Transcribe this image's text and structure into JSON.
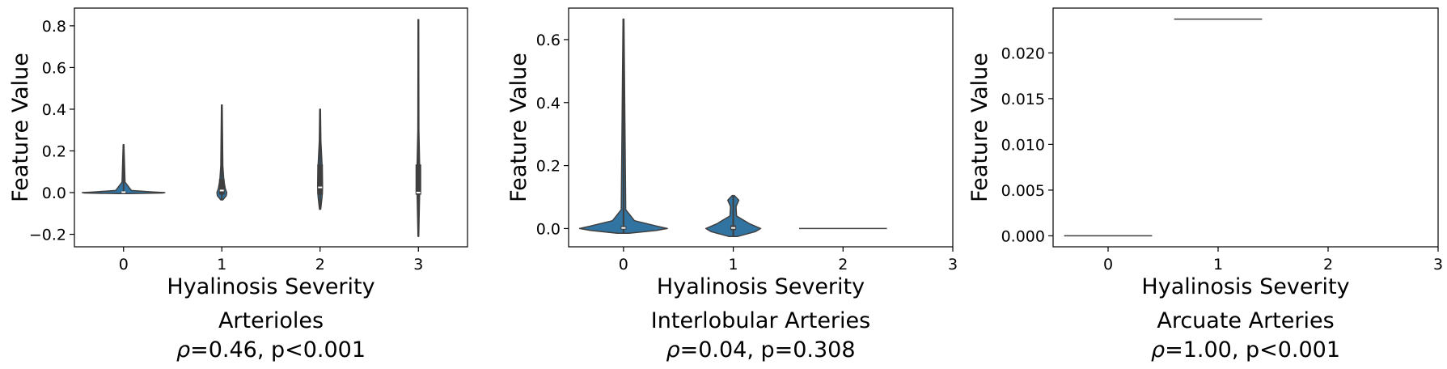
{
  "colors": {
    "violin": "#3274a1",
    "outline": "#3f3f3f",
    "median": "#ffffff"
  },
  "chart_data": [
    {
      "type": "violin",
      "title_line1": "Arterioles",
      "title_line2_prefix": "ρ",
      "title_line2": "=0.46, p<0.001",
      "xlabel": "Hyalinosis Severity",
      "ylabel": "Feature Value",
      "xlim": [
        -0.5,
        3.5
      ],
      "ylim": [
        -0.26,
        0.885
      ],
      "xticks": [
        0,
        1,
        2,
        3
      ],
      "yticks": [
        -0.2,
        0.0,
        0.2,
        0.4,
        0.6,
        0.8
      ],
      "ytick_labels": [
        "−0.2",
        "0.0",
        "0.2",
        "0.4",
        "0.6",
        "0.8"
      ],
      "groups": [
        {
          "x": 0,
          "min": -0.005,
          "max": 0.23,
          "q1": -0.003,
          "median": 0.002,
          "q3": 0.006,
          "profile": [
            [
              -0.005,
              0.05
            ],
            [
              -0.002,
              0.4
            ],
            [
              0.0,
              0.42
            ],
            [
              0.003,
              0.3
            ],
            [
              0.01,
              0.08
            ],
            [
              0.05,
              0.015
            ],
            [
              0.23,
              0.004
            ]
          ]
        },
        {
          "x": 1,
          "min": -0.035,
          "max": 0.42,
          "q1": -0.01,
          "median": 0.01,
          "q3": 0.065,
          "profile": [
            [
              -0.035,
              0.01
            ],
            [
              -0.015,
              0.045
            ],
            [
              0.0,
              0.05
            ],
            [
              0.02,
              0.035
            ],
            [
              0.06,
              0.02
            ],
            [
              0.13,
              0.01
            ],
            [
              0.42,
              0.004
            ]
          ]
        },
        {
          "x": 2,
          "min": -0.08,
          "max": 0.4,
          "q1": -0.01,
          "median": 0.025,
          "q3": 0.135,
          "profile": [
            [
              -0.08,
              0.006
            ],
            [
              -0.02,
              0.02
            ],
            [
              0.03,
              0.025
            ],
            [
              0.13,
              0.02
            ],
            [
              0.25,
              0.008
            ],
            [
              0.4,
              0.004
            ]
          ]
        },
        {
          "x": 3,
          "min": -0.21,
          "max": 0.83,
          "q1": -0.01,
          "median": 0.0,
          "q3": 0.135,
          "profile": [
            [
              -0.21,
              0.004
            ],
            [
              -0.02,
              0.012
            ],
            [
              0.05,
              0.015
            ],
            [
              0.15,
              0.012
            ],
            [
              0.3,
              0.005
            ],
            [
              0.83,
              0.003
            ]
          ]
        }
      ]
    },
    {
      "type": "violin",
      "title_line1": "Interlobular Arteries",
      "title_line2_prefix": "ρ",
      "title_line2": "=0.04, p=0.308",
      "xlabel": "Hyalinosis Severity",
      "ylabel": "Feature Value",
      "xlim": [
        -0.5,
        3.0
      ],
      "ylim": [
        -0.058,
        0.7
      ],
      "xticks": [
        0,
        1,
        2,
        3
      ],
      "yticks": [
        0.0,
        0.2,
        0.4,
        0.6
      ],
      "ytick_labels": [
        "0.0",
        "0.2",
        "0.4",
        "0.6"
      ],
      "groups": [
        {
          "x": 0,
          "min": -0.015,
          "max": 0.665,
          "q1": -0.003,
          "median": 0.002,
          "q3": 0.008,
          "profile": [
            [
              -0.015,
              0.05
            ],
            [
              -0.006,
              0.3
            ],
            [
              0.0,
              0.4
            ],
            [
              0.008,
              0.3
            ],
            [
              0.025,
              0.1
            ],
            [
              0.06,
              0.02
            ],
            [
              0.665,
              0.004
            ]
          ]
        },
        {
          "x": 1,
          "min": -0.025,
          "max": 0.105,
          "q1": -0.005,
          "median": 0.002,
          "q3": 0.01,
          "profile": [
            [
              -0.025,
              0.04
            ],
            [
              -0.01,
              0.2
            ],
            [
              0.0,
              0.25
            ],
            [
              0.015,
              0.15
            ],
            [
              0.04,
              0.03
            ],
            [
              0.07,
              0.025
            ],
            [
              0.09,
              0.05
            ],
            [
              0.105,
              0.01
            ]
          ]
        },
        {
          "x": 2,
          "single_value": 0.0,
          "halfwidth": 0.4
        }
      ]
    },
    {
      "type": "violin",
      "title_line1": "Arcuate Arteries",
      "title_line2_prefix": "ρ",
      "title_line2": "=1.00, p<0.001",
      "xlabel": "Hyalinosis Severity",
      "ylabel": "Feature Value",
      "xlim": [
        -0.5,
        3.0
      ],
      "ylim": [
        -0.0012,
        0.0249
      ],
      "xticks": [
        0,
        1,
        2,
        3
      ],
      "yticks": [
        0.0,
        0.005,
        0.01,
        0.015,
        0.02
      ],
      "ytick_labels": [
        "0.000",
        "0.005",
        "0.010",
        "0.015",
        "0.020"
      ],
      "groups": [
        {
          "x": 0,
          "single_value": 0.0,
          "halfwidth": 0.4
        },
        {
          "x": 1,
          "single_value": 0.0237,
          "halfwidth": 0.4
        }
      ]
    }
  ]
}
